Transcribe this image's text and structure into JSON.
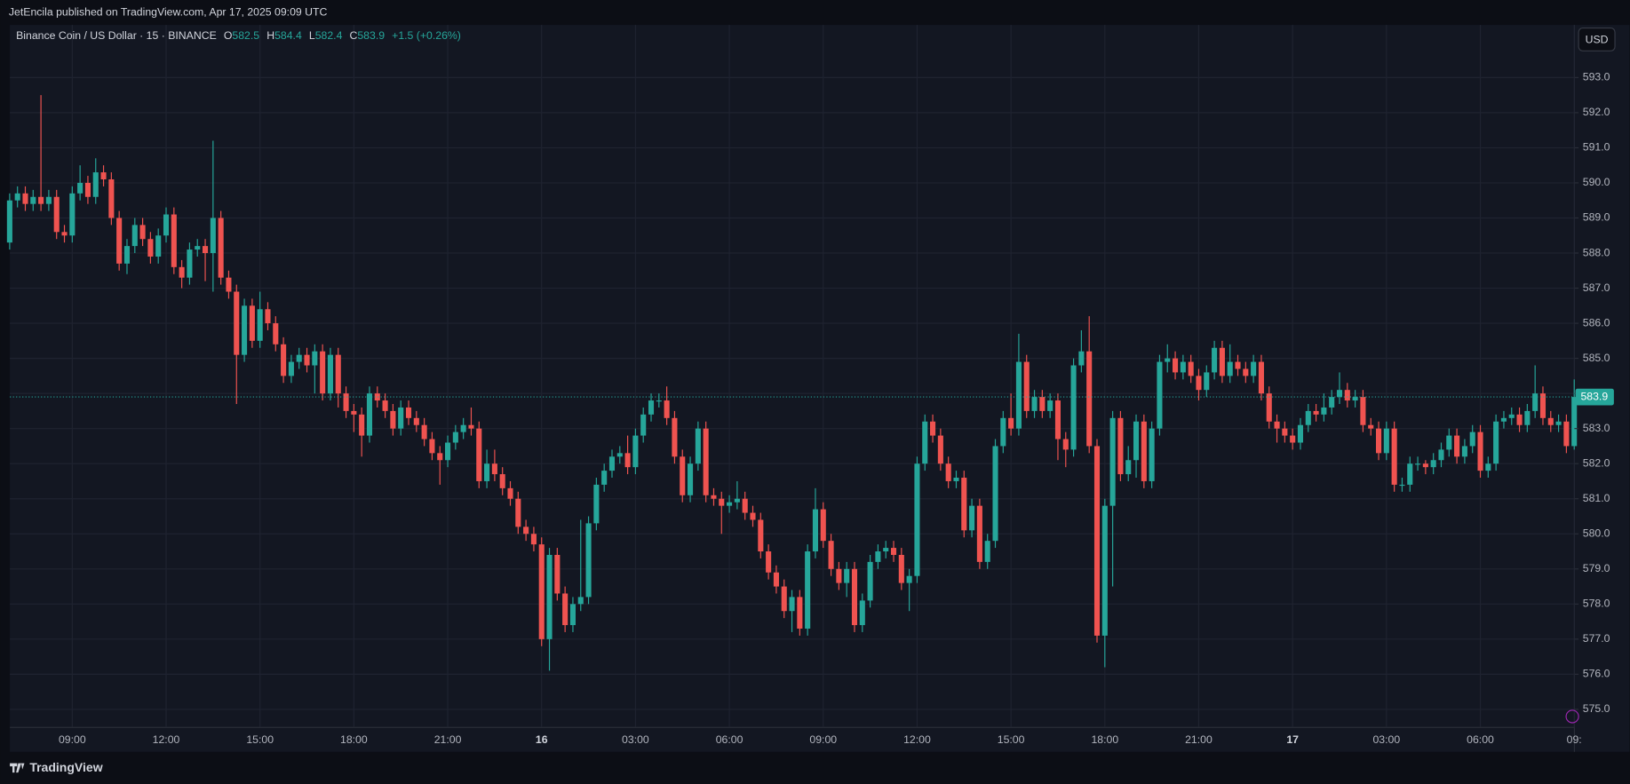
{
  "header": {
    "publisher": "JetEncila published on TradingView.com, Apr 17, 2025 09:09 UTC"
  },
  "footer": {
    "brand": "TradingView"
  },
  "chart_data": {
    "type": "candlestick",
    "title": "Binance Coin / US Dollar · 15 · BINANCE",
    "ohlc_labels": [
      "O",
      "H",
      "L",
      "C"
    ],
    "change": "+1.5 (+0.26%)",
    "currency": "USD",
    "up_color": "#26a69a",
    "down_color": "#ef5350",
    "grid": true,
    "ylim": [
      574.5,
      594.5
    ],
    "yticks": [
      {
        "value": 575,
        "label": "575.0"
      },
      {
        "value": 576,
        "label": "576.0"
      },
      {
        "value": 577,
        "label": "577.0"
      },
      {
        "value": 578,
        "label": "578.0"
      },
      {
        "value": 579,
        "label": "579.0"
      },
      {
        "value": 580,
        "label": "580.0"
      },
      {
        "value": 581,
        "label": "581.0"
      },
      {
        "value": 582,
        "label": "582.0"
      },
      {
        "value": 583,
        "label": "583.0"
      },
      {
        "value": 584,
        "label": "584.0"
      },
      {
        "value": 585,
        "label": "585.0"
      },
      {
        "value": 586,
        "label": "586.0"
      },
      {
        "value": 587,
        "label": "587.0"
      },
      {
        "value": 588,
        "label": "588.0"
      },
      {
        "value": 589,
        "label": "589.0"
      },
      {
        "value": 590,
        "label": "590.0"
      },
      {
        "value": 591,
        "label": "591.0"
      },
      {
        "value": 592,
        "label": "592.0"
      },
      {
        "value": 593,
        "label": "593.0"
      }
    ],
    "categories": [
      null,
      null,
      null,
      null,
      null,
      null,
      null,
      null,
      "09:00",
      null,
      null,
      null,
      null,
      null,
      null,
      null,
      null,
      null,
      null,
      null,
      "12:00",
      null,
      null,
      null,
      null,
      null,
      null,
      null,
      null,
      null,
      null,
      null,
      "15:00",
      null,
      null,
      null,
      null,
      null,
      null,
      null,
      null,
      null,
      null,
      null,
      "18:00",
      null,
      null,
      null,
      null,
      null,
      null,
      null,
      null,
      null,
      null,
      null,
      "21:00",
      null,
      null,
      null,
      null,
      null,
      null,
      null,
      null,
      null,
      null,
      null,
      "16",
      null,
      null,
      null,
      null,
      null,
      null,
      null,
      null,
      null,
      null,
      null,
      "03:00",
      null,
      null,
      null,
      null,
      null,
      null,
      null,
      null,
      null,
      null,
      null,
      "06:00",
      null,
      null,
      null,
      null,
      null,
      null,
      null,
      null,
      null,
      null,
      null,
      "09:00",
      null,
      null,
      null,
      null,
      null,
      null,
      null,
      null,
      null,
      null,
      null,
      "12:00",
      null,
      null,
      null,
      null,
      null,
      null,
      null,
      null,
      null,
      null,
      null,
      "15:00",
      null,
      null,
      null,
      null,
      null,
      null,
      null,
      null,
      null,
      null,
      null,
      "18:00",
      null,
      null,
      null,
      null,
      null,
      null,
      null,
      null,
      null,
      null,
      null,
      "21:00",
      null,
      null,
      null,
      null,
      null,
      null,
      null,
      null,
      null,
      null,
      null,
      "17",
      null,
      null,
      null,
      null,
      null,
      null,
      null,
      null,
      null,
      null,
      null,
      "03:00",
      null,
      null,
      null,
      null,
      null,
      null,
      null,
      null,
      null,
      null,
      null,
      "06:00",
      null,
      null,
      null,
      null,
      null,
      null,
      null,
      null,
      null,
      null,
      null,
      "09:"
    ],
    "open": [
      588.3,
      589.5,
      589.7,
      589.4,
      589.6,
      589.4,
      589.6,
      588.6,
      588.5,
      589.7,
      590.0,
      589.6,
      590.3,
      590.1,
      589.0,
      587.7,
      588.2,
      588.8,
      588.4,
      587.9,
      588.5,
      589.1,
      587.6,
      587.3,
      588.1,
      588.2,
      588.0,
      589.0,
      587.3,
      586.9,
      585.1,
      586.5,
      585.5,
      586.4,
      586.0,
      585.4,
      584.5,
      584.9,
      585.1,
      584.8,
      585.2,
      584.0,
      585.1,
      584.0,
      583.5,
      583.4,
      582.8,
      584.0,
      583.8,
      583.5,
      583.0,
      583.6,
      583.3,
      583.1,
      582.7,
      582.3,
      582.1,
      582.6,
      582.9,
      583.1,
      583.0,
      581.5,
      582.0,
      581.7,
      581.3,
      581.0,
      580.2,
      580.0,
      579.7,
      577.0,
      579.4,
      578.3,
      577.4,
      578.0,
      578.2,
      580.3,
      581.4,
      581.8,
      582.2,
      582.3,
      581.9,
      582.8,
      583.4,
      583.8,
      583.8,
      583.3,
      582.2,
      581.1,
      582.0,
      583.0,
      581.1,
      581.0,
      580.8,
      580.9,
      581.0,
      580.6,
      580.4,
      579.5,
      578.9,
      578.5,
      577.8,
      578.2,
      577.3,
      579.5,
      580.7,
      579.8,
      579.0,
      578.6,
      579.0,
      577.4,
      578.1,
      579.2,
      579.5,
      579.6,
      579.4,
      578.6,
      578.8,
      582.0,
      583.2,
      582.8,
      582.0,
      581.5,
      581.6,
      580.1,
      580.8,
      579.2,
      579.8,
      582.5,
      583.3,
      583.0,
      584.9,
      583.5,
      583.9,
      583.5,
      583.8,
      582.7,
      582.4,
      584.8,
      585.2,
      582.5,
      577.1,
      580.8,
      583.3,
      581.7,
      582.1,
      583.2,
      581.5,
      583.0,
      584.9,
      585.0,
      584.6,
      584.9,
      584.5,
      584.1,
      584.6,
      585.3,
      584.5,
      584.9,
      584.7,
      584.5,
      584.9,
      584.0,
      583.2,
      583.0,
      582.8,
      582.6,
      583.1,
      583.5,
      583.4,
      583.6,
      583.9,
      584.1,
      583.8,
      583.9,
      583.1,
      583.0,
      582.3,
      583.0,
      581.4,
      581.4,
      582.0,
      582.0,
      581.9,
      582.1,
      582.4,
      582.8,
      582.2,
      582.5,
      582.9,
      581.8,
      582.0,
      583.2,
      583.3,
      583.4,
      583.1,
      583.5,
      584.0,
      583.3,
      583.1,
      583.2,
      582.5
    ],
    "high": [
      589.7,
      589.9,
      589.9,
      589.8,
      592.5,
      589.8,
      589.8,
      588.8,
      589.9,
      590.5,
      590.2,
      590.7,
      590.5,
      590.3,
      589.2,
      588.4,
      589.0,
      589.0,
      588.6,
      588.7,
      589.3,
      589.3,
      587.8,
      588.3,
      588.4,
      588.4,
      591.2,
      589.2,
      587.5,
      587.1,
      586.7,
      586.7,
      586.9,
      586.6,
      586.2,
      585.6,
      585.1,
      585.3,
      585.3,
      585.4,
      585.4,
      585.3,
      585.3,
      584.2,
      583.7,
      583.6,
      584.2,
      584.2,
      584.0,
      583.7,
      583.8,
      583.8,
      583.5,
      583.3,
      582.9,
      582.5,
      582.8,
      583.1,
      583.3,
      583.6,
      583.2,
      582.4,
      582.4,
      581.9,
      581.5,
      581.2,
      580.4,
      580.2,
      579.9,
      579.6,
      579.6,
      578.5,
      578.2,
      580.4,
      580.5,
      581.6,
      582.0,
      582.4,
      582.5,
      582.8,
      583.0,
      583.6,
      584.0,
      584.0,
      584.2,
      583.5,
      582.4,
      582.2,
      583.2,
      583.2,
      581.3,
      581.2,
      581.1,
      581.5,
      581.2,
      580.8,
      580.6,
      579.7,
      579.1,
      578.7,
      578.4,
      578.4,
      579.7,
      581.3,
      580.9,
      580.0,
      579.2,
      579.2,
      579.2,
      578.3,
      579.4,
      579.7,
      579.8,
      579.8,
      579.6,
      579.0,
      582.2,
      583.4,
      583.4,
      583.0,
      582.2,
      581.8,
      581.8,
      581.0,
      581.0,
      580.0,
      582.7,
      583.5,
      584.0,
      585.7,
      585.1,
      584.1,
      584.1,
      584.0,
      584.0,
      582.9,
      585.0,
      585.8,
      586.2,
      582.7,
      581.0,
      583.5,
      583.5,
      582.5,
      583.4,
      583.4,
      583.2,
      585.1,
      585.4,
      585.2,
      585.1,
      585.1,
      584.7,
      584.8,
      585.5,
      585.5,
      585.4,
      585.1,
      584.9,
      585.1,
      585.1,
      584.2,
      583.4,
      583.2,
      583.0,
      583.3,
      583.7,
      583.7,
      584.0,
      584.1,
      584.6,
      584.3,
      584.1,
      584.1,
      583.3,
      583.2,
      583.2,
      583.2,
      581.6,
      582.2,
      582.2,
      582.1,
      582.3,
      582.6,
      583.0,
      583.0,
      582.7,
      583.1,
      583.1,
      582.2,
      583.4,
      583.5,
      583.6,
      583.6,
      583.7,
      584.8,
      584.2,
      583.5,
      583.4,
      583.4,
      584.4
    ],
    "low": [
      588.1,
      589.3,
      589.2,
      589.2,
      589.2,
      589.2,
      588.4,
      588.3,
      588.3,
      589.5,
      589.4,
      589.4,
      589.9,
      588.8,
      587.5,
      587.4,
      588.0,
      588.2,
      587.7,
      587.7,
      588.3,
      587.4,
      587.0,
      587.1,
      587.9,
      587.2,
      586.9,
      587.1,
      586.7,
      583.7,
      584.9,
      585.3,
      585.3,
      585.8,
      585.2,
      584.3,
      584.3,
      584.7,
      584.6,
      584.0,
      583.8,
      583.8,
      583.6,
      583.3,
      582.9,
      582.2,
      582.6,
      583.6,
      583.3,
      582.8,
      582.8,
      583.1,
      582.9,
      582.5,
      582.1,
      581.4,
      581.9,
      582.4,
      582.7,
      582.8,
      581.3,
      581.3,
      581.5,
      581.1,
      580.8,
      580.0,
      579.8,
      579.5,
      576.8,
      576.1,
      578.1,
      577.2,
      577.2,
      577.8,
      578.0,
      580.1,
      581.2,
      581.6,
      582.0,
      581.7,
      581.7,
      582.6,
      583.2,
      583.6,
      583.1,
      582.0,
      580.9,
      580.9,
      581.8,
      580.9,
      580.8,
      580.0,
      580.6,
      580.7,
      580.4,
      580.2,
      579.3,
      578.7,
      578.3,
      577.6,
      577.2,
      577.1,
      577.1,
      579.3,
      579.6,
      578.8,
      578.4,
      578.2,
      577.2,
      577.2,
      577.9,
      579.0,
      579.3,
      579.2,
      578.4,
      577.8,
      578.6,
      581.8,
      582.6,
      581.8,
      581.3,
      581.3,
      579.9,
      579.9,
      579.0,
      579.0,
      579.6,
      582.3,
      582.8,
      582.8,
      583.3,
      583.3,
      583.3,
      583.3,
      582.1,
      581.9,
      582.2,
      584.6,
      582.3,
      576.9,
      576.2,
      578.5,
      581.5,
      581.5,
      581.6,
      581.3,
      581.3,
      582.8,
      584.6,
      584.4,
      584.4,
      584.3,
      583.8,
      583.9,
      584.4,
      584.3,
      584.3,
      584.5,
      584.3,
      584.3,
      583.8,
      583.0,
      582.6,
      582.6,
      582.4,
      582.4,
      582.9,
      583.2,
      583.2,
      583.4,
      583.7,
      583.6,
      583.6,
      582.9,
      582.8,
      582.1,
      582.1,
      581.2,
      581.2,
      581.2,
      581.8,
      581.7,
      581.7,
      581.9,
      582.2,
      582.0,
      582.0,
      582.3,
      581.6,
      581.6,
      581.8,
      583.0,
      583.1,
      582.9,
      582.9,
      583.3,
      583.1,
      582.9,
      582.9,
      582.3,
      582.4
    ],
    "close": [
      589.5,
      589.7,
      589.4,
      589.6,
      589.4,
      589.6,
      588.6,
      588.5,
      589.7,
      590.0,
      589.6,
      590.3,
      590.1,
      589.0,
      587.7,
      588.2,
      588.8,
      588.4,
      587.9,
      588.5,
      589.1,
      587.6,
      587.3,
      588.1,
      588.2,
      588.0,
      589.0,
      587.3,
      586.9,
      585.1,
      586.5,
      585.5,
      586.4,
      586.0,
      585.4,
      584.5,
      584.9,
      585.1,
      584.8,
      585.2,
      584.0,
      585.1,
      584.0,
      583.5,
      583.4,
      582.8,
      584.0,
      583.8,
      583.5,
      583.0,
      583.6,
      583.3,
      583.1,
      582.7,
      582.3,
      582.1,
      582.6,
      582.9,
      583.1,
      583.0,
      581.5,
      582.0,
      581.7,
      581.3,
      581.0,
      580.2,
      580.0,
      579.7,
      577.0,
      579.4,
      578.3,
      577.4,
      578.0,
      578.2,
      580.3,
      581.4,
      581.8,
      582.2,
      582.3,
      581.9,
      582.8,
      583.4,
      583.8,
      583.8,
      583.3,
      582.2,
      581.1,
      582.0,
      583.0,
      581.1,
      581.0,
      580.8,
      580.9,
      581.0,
      580.6,
      580.4,
      579.5,
      578.9,
      578.5,
      577.8,
      578.2,
      577.3,
      579.5,
      580.7,
      579.8,
      579.0,
      578.6,
      579.0,
      577.4,
      578.1,
      579.2,
      579.5,
      579.6,
      579.4,
      578.6,
      578.8,
      582.0,
      583.2,
      582.8,
      582.0,
      581.5,
      581.6,
      580.1,
      580.8,
      579.2,
      579.8,
      582.5,
      583.3,
      583.0,
      584.9,
      583.5,
      583.9,
      583.5,
      583.8,
      582.7,
      582.4,
      584.8,
      585.2,
      582.5,
      577.1,
      580.8,
      583.3,
      581.7,
      582.1,
      583.2,
      581.5,
      583.0,
      584.9,
      585.0,
      584.6,
      584.9,
      584.5,
      584.1,
      584.6,
      585.3,
      584.5,
      584.9,
      584.7,
      584.5,
      584.9,
      584.0,
      583.2,
      583.0,
      582.8,
      582.6,
      583.1,
      583.5,
      583.4,
      583.6,
      583.9,
      584.1,
      583.8,
      583.9,
      583.1,
      583.0,
      582.3,
      583.0,
      581.4,
      581.4,
      582.0,
      582.0,
      581.9,
      582.1,
      582.4,
      582.8,
      582.2,
      582.5,
      582.9,
      581.8,
      582.0,
      583.2,
      583.3,
      583.4,
      583.1,
      583.5,
      584.0,
      583.3,
      583.1,
      583.2,
      582.5,
      583.9
    ]
  }
}
